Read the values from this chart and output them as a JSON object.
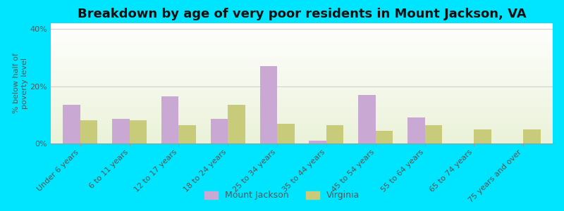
{
  "title": "Breakdown by age of very poor residents in Mount Jackson, VA",
  "ylabel": "% below half of\npoverty level",
  "categories": [
    "Under 6 years",
    "6 to 11 years",
    "12 to 17 years",
    "18 to 24 years",
    "25 to 34 years",
    "35 to 44 years",
    "45 to 54 years",
    "55 to 64 years",
    "65 to 74 years",
    "75 years and over"
  ],
  "mount_jackson": [
    13.5,
    8.5,
    16.5,
    8.5,
    27.0,
    1.0,
    17.0,
    9.0,
    0.0,
    0.0
  ],
  "virginia": [
    8.0,
    8.0,
    6.5,
    13.5,
    7.0,
    6.5,
    4.5,
    6.5,
    5.0,
    5.0
  ],
  "bar_color_mj": "#c9a8d4",
  "bar_color_va": "#c8cc7a",
  "background_color_outer": "#00e5ff",
  "ylim": [
    0,
    42
  ],
  "yticks": [
    0,
    20,
    40
  ],
  "ytick_labels": [
    "0%",
    "20%",
    "40%"
  ],
  "title_fontsize": 13,
  "axis_label_fontsize": 8,
  "tick_fontsize": 8,
  "bar_width": 0.35,
  "legend_labels": [
    "Mount Jackson",
    "Virginia"
  ]
}
